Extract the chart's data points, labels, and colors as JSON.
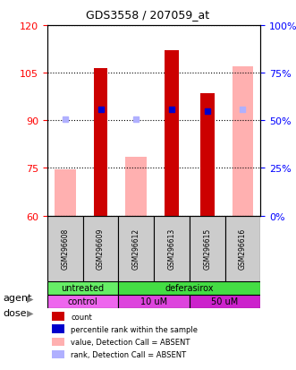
{
  "title": "GDS3558 / 207059_at",
  "samples": [
    "GSM296608",
    "GSM296609",
    "GSM296612",
    "GSM296613",
    "GSM296615",
    "GSM296616"
  ],
  "left_ylim": [
    60,
    120
  ],
  "right_ylim": [
    0,
    100
  ],
  "left_yticks": [
    60,
    75,
    90,
    105,
    120
  ],
  "right_yticks": [
    0,
    25,
    50,
    75,
    100
  ],
  "right_yticklabels": [
    "0%",
    "25%",
    "50%",
    "75%",
    "100%"
  ],
  "count_values": [
    null,
    106.5,
    null,
    112.0,
    98.5,
    null
  ],
  "rank_values": [
    null,
    93.5,
    null,
    93.5,
    93.0,
    null
  ],
  "value_absent": [
    74.5,
    null,
    78.5,
    null,
    null,
    107.0
  ],
  "rank_absent": [
    90.5,
    null,
    90.5,
    null,
    null,
    93.5
  ],
  "count_color": "#cc0000",
  "rank_color": "#0000cc",
  "value_absent_color": "#ffb0b0",
  "rank_absent_color": "#b0b0ff",
  "bar_bottom": 60,
  "agent_groups": [
    {
      "label": "untreated",
      "span": [
        0,
        2
      ],
      "color": "#66ee66"
    },
    {
      "label": "deferasirox",
      "span": [
        2,
        6
      ],
      "color": "#44dd44"
    }
  ],
  "dose_groups": [
    {
      "label": "control",
      "span": [
        0,
        2
      ],
      "color": "#ee66ee"
    },
    {
      "label": "10 uM",
      "span": [
        2,
        4
      ],
      "color": "#dd44dd"
    },
    {
      "label": "50 uM",
      "span": [
        4,
        6
      ],
      "color": "#cc22cc"
    }
  ],
  "legend_items": [
    {
      "label": "count",
      "color": "#cc0000"
    },
    {
      "label": "percentile rank within the sample",
      "color": "#0000cc"
    },
    {
      "label": "value, Detection Call = ABSENT",
      "color": "#ffb0b0"
    },
    {
      "label": "rank, Detection Call = ABSENT",
      "color": "#b0b0ff"
    }
  ],
  "agent_label": "agent",
  "dose_label": "dose",
  "bar_width": 0.4,
  "grid_color": "#000000",
  "bg_color": "#ffffff",
  "sample_area_color": "#cccccc"
}
